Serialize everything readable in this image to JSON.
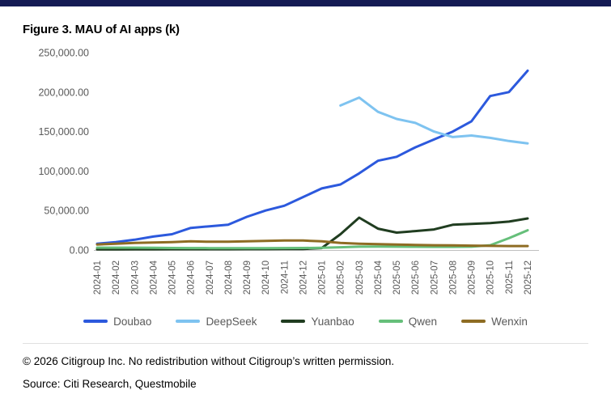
{
  "page": {
    "title": "Figure 3. MAU of AI apps (k)",
    "footer": {
      "copyright": "© 2026 Citigroup Inc. No redistribution without Citigroup’s written permission.",
      "source": "Source: Citi Research, Questmobile"
    }
  },
  "colors": {
    "topbar": "#151b54",
    "axis": "#bfbfbf",
    "tick_text": "#595959"
  },
  "chart_data": {
    "type": "line",
    "title": "Figure 3. MAU of AI apps (k)",
    "categories": [
      "2024-01",
      "2024-02",
      "2024-03",
      "2024-04",
      "2024-05",
      "2024-06",
      "2024-07",
      "2024-08",
      "2024-09",
      "2024-10",
      "2024-11",
      "2024-12",
      "2025-01",
      "2025-02",
      "2025-03",
      "2025-04",
      "2025-05",
      "2025-06",
      "2025-07",
      "2025-08",
      "2025-09",
      "2025-10",
      "2025-11",
      "2025-12"
    ],
    "series": [
      {
        "name": "Doubao",
        "color": "#2c59dd",
        "values": [
          8000,
          10000,
          13000,
          17000,
          20000,
          28000,
          30000,
          32000,
          42000,
          50000,
          56000,
          67000,
          78000,
          83000,
          97000,
          113000,
          118000,
          130000,
          140000,
          150000,
          163000,
          195000,
          200000,
          227000
        ]
      },
      {
        "name": "DeepSeek",
        "color": "#7ec3f0",
        "values": [
          null,
          null,
          null,
          null,
          null,
          null,
          null,
          null,
          null,
          null,
          null,
          null,
          null,
          183000,
          193000,
          175000,
          166000,
          161000,
          150000,
          143000,
          145000,
          142000,
          138000,
          135000
        ]
      },
      {
        "name": "Yuanbao",
        "color": "#203d20",
        "values": [
          800,
          800,
          900,
          900,
          1000,
          1000,
          1000,
          1000,
          1100,
          1100,
          1200,
          1300,
          2500,
          20000,
          41000,
          27000,
          22000,
          24000,
          26000,
          32000,
          33000,
          34000,
          36000,
          40000
        ]
      },
      {
        "name": "Qwen",
        "color": "#66bf7a",
        "values": [
          3000,
          3000,
          3000,
          2800,
          2600,
          2500,
          2400,
          2300,
          2300,
          2400,
          2500,
          2600,
          2800,
          3500,
          4200,
          4300,
          4200,
          4100,
          4000,
          4000,
          4200,
          6000,
          15000,
          25000
        ]
      },
      {
        "name": "Wenxin",
        "color": "#8e6c23",
        "values": [
          7000,
          8000,
          9000,
          9500,
          10000,
          11000,
          10500,
          10500,
          11000,
          11500,
          12000,
          12000,
          11000,
          9000,
          8000,
          7500,
          7000,
          6500,
          6000,
          5800,
          5500,
          5200,
          5000,
          5000
        ]
      }
    ],
    "ylim": [
      0,
      250000
    ],
    "y_tick_step": 50000,
    "y_tick_labels": [
      "0.00",
      "50,000.00",
      "100,000.00",
      "150,000.00",
      "200,000.00",
      "250,000.00"
    ],
    "grid": false,
    "legend_position": "bottom"
  }
}
